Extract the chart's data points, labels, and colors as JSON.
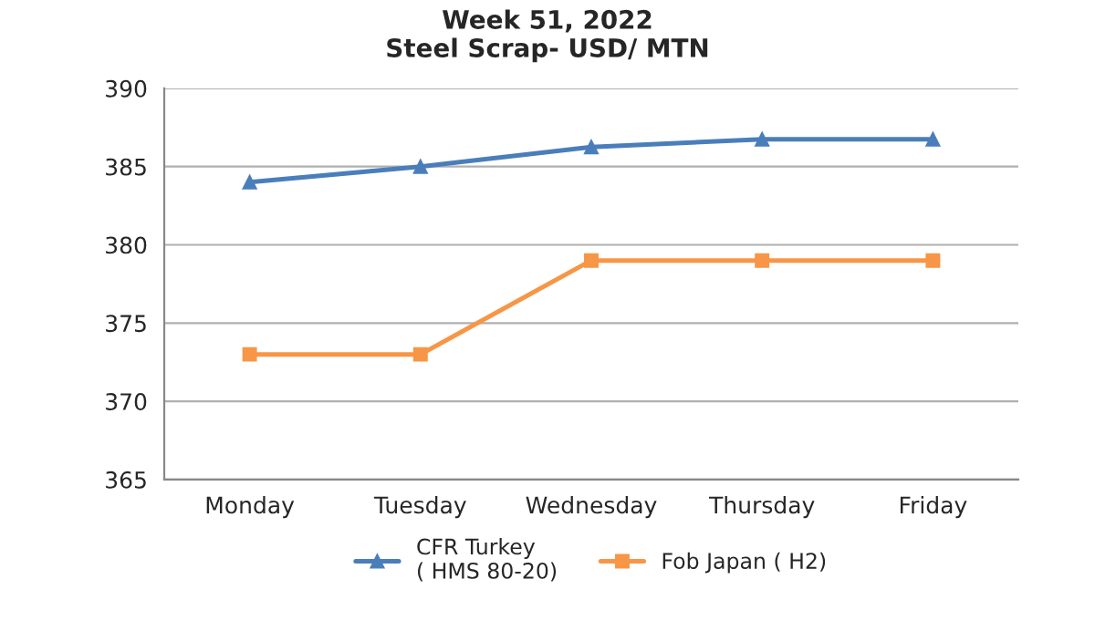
{
  "chart_data": {
    "type": "line",
    "title": "Week 51, 2022",
    "subtitle": "Steel Scrap- USD/ MTN",
    "categories": [
      "Monday",
      "Tuesday",
      "Wednesday",
      "Thursday",
      "Friday"
    ],
    "series": [
      {
        "name": "CFR Turkey\n( HMS 80-20)",
        "color": "#4a7ebb",
        "marker": "triangle",
        "values": [
          384,
          385,
          386.25,
          386.75,
          386.75
        ]
      },
      {
        "name": "Fob Japan ( H2)",
        "color": "#f79646",
        "marker": "square",
        "values": [
          373,
          373,
          379,
          379,
          379
        ]
      }
    ],
    "ylim": [
      365,
      390
    ],
    "yticks": [
      365,
      370,
      375,
      380,
      385,
      390
    ],
    "grid": "y",
    "legend": "bottom",
    "line_style": "solid"
  }
}
